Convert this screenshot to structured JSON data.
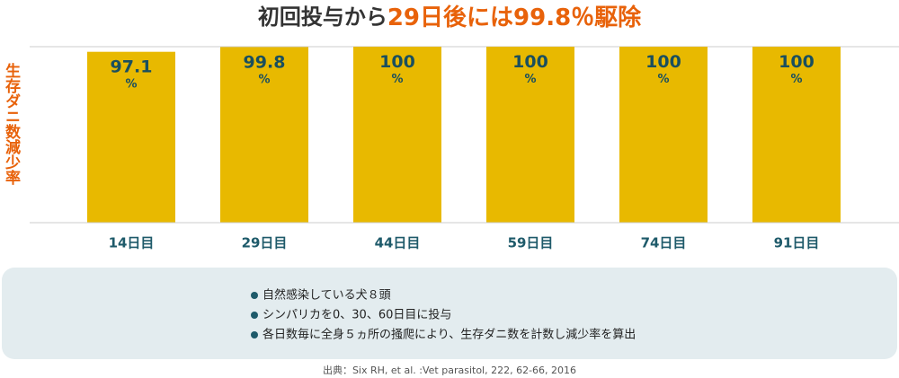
{
  "chart_data": {
    "type": "bar",
    "title": [
      "初回投与から",
      "29日後には99.8％駆除"
    ],
    "y_label": "生存ダニ数減少率",
    "categories": [
      "14日目",
      "29日目",
      "44日目",
      "59日目",
      "74日目",
      "91日目"
    ],
    "values": [
      97.1,
      99.8,
      100,
      100,
      100,
      100
    ],
    "value_labels": [
      "97.1%",
      "99.8%",
      "100%",
      "100%",
      "100%",
      "100%"
    ],
    "color": "#e8b900",
    "ylim": [
      0,
      100
    ],
    "notes": [
      "自然感染している犬８頭",
      "シンパリカを0、30、60日目に投与",
      "各日数毎に全身５ヵ所の掻爬により、生存ダニ数を計数し減少率を算出"
    ],
    "source": "出典：Six RH, et al. :Vet parasitol, 222, 62-66, 2016"
  }
}
